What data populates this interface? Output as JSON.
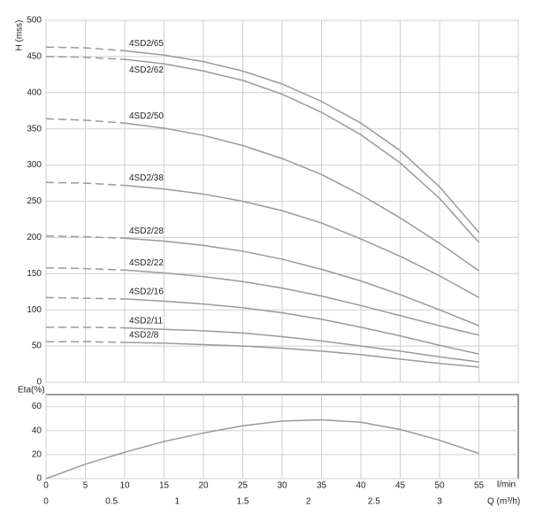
{
  "chart_data": [
    {
      "type": "line",
      "ylabel": "H (mss)",
      "x": [
        0,
        5,
        10,
        15,
        20,
        25,
        30,
        35,
        40,
        45,
        50,
        55
      ],
      "xlim": [
        0,
        60
      ],
      "xticks": [
        0,
        5,
        10,
        15,
        20,
        25,
        30,
        35,
        40,
        45,
        50,
        55,
        60
      ],
      "ylim": [
        0,
        500
      ],
      "yticks": [
        0,
        50,
        100,
        150,
        200,
        250,
        300,
        350,
        400,
        450,
        500
      ],
      "grid": true,
      "dashed_xlim": [
        0,
        10
      ],
      "series": [
        {
          "name": "4SD2/65",
          "color": "#9a9a9a",
          "values": [
            463,
            462,
            458,
            452,
            443,
            430,
            412,
            388,
            358,
            320,
            270,
            207
          ]
        },
        {
          "name": "4SD2/62",
          "color": "#9a9a9a",
          "values": [
            450,
            449,
            446,
            440,
            430,
            417,
            398,
            373,
            342,
            303,
            254,
            193
          ]
        },
        {
          "name": "4SD2/50",
          "color": "#9a9a9a",
          "values": [
            364,
            362,
            358,
            351,
            341,
            327,
            309,
            287,
            259,
            227,
            192,
            154
          ]
        },
        {
          "name": "4SD2/38",
          "color": "#9a9a9a",
          "values": [
            276,
            275,
            272,
            267,
            260,
            250,
            237,
            220,
            198,
            174,
            147,
            117
          ]
        },
        {
          "name": "4SD2/28",
          "color": "#9a9a9a",
          "values": [
            202,
            201,
            199,
            195,
            189,
            181,
            170,
            156,
            140,
            121,
            100,
            78
          ]
        },
        {
          "name": "4SD2/22",
          "color": "#9a9a9a",
          "values": [
            158,
            157,
            155,
            151,
            146,
            139,
            130,
            119,
            106,
            92,
            78,
            65
          ]
        },
        {
          "name": "4SD2/16",
          "color": "#9a9a9a",
          "values": [
            117,
            116,
            115,
            112,
            108,
            103,
            96,
            87,
            76,
            64,
            51,
            39
          ]
        },
        {
          "name": "4SD2/11",
          "color": "#9a9a9a",
          "values": [
            76,
            76,
            75,
            73,
            71,
            68,
            63,
            57,
            50,
            43,
            35,
            28
          ]
        },
        {
          "name": "4SD2/8",
          "color": "#9a9a9a",
          "values": [
            56,
            56,
            55,
            54,
            52,
            50,
            47,
            43,
            38,
            32,
            26,
            21
          ]
        }
      ]
    },
    {
      "type": "line",
      "ylabel": "Eta(%)",
      "xlabel": "l/min",
      "x2label": "Q (m³/h)",
      "x": [
        0,
        5,
        10,
        15,
        20,
        25,
        30,
        35,
        40,
        45,
        50,
        55
      ],
      "xlim": [
        0,
        60
      ],
      "xticks": [
        0,
        5,
        10,
        15,
        20,
        25,
        30,
        35,
        40,
        45,
        50,
        55
      ],
      "x2lim": [
        0,
        3.6
      ],
      "x2ticks": [
        0,
        0.5,
        1,
        1.5,
        2,
        2.5,
        3
      ],
      "ylim": [
        0,
        70
      ],
      "yticks": [
        0,
        20,
        40,
        60
      ],
      "grid": true,
      "series": [
        {
          "color": "#9a9a9a",
          "values": [
            0,
            12,
            22,
            31,
            38,
            44,
            48,
            49,
            47,
            41,
            32,
            21
          ]
        }
      ]
    }
  ]
}
